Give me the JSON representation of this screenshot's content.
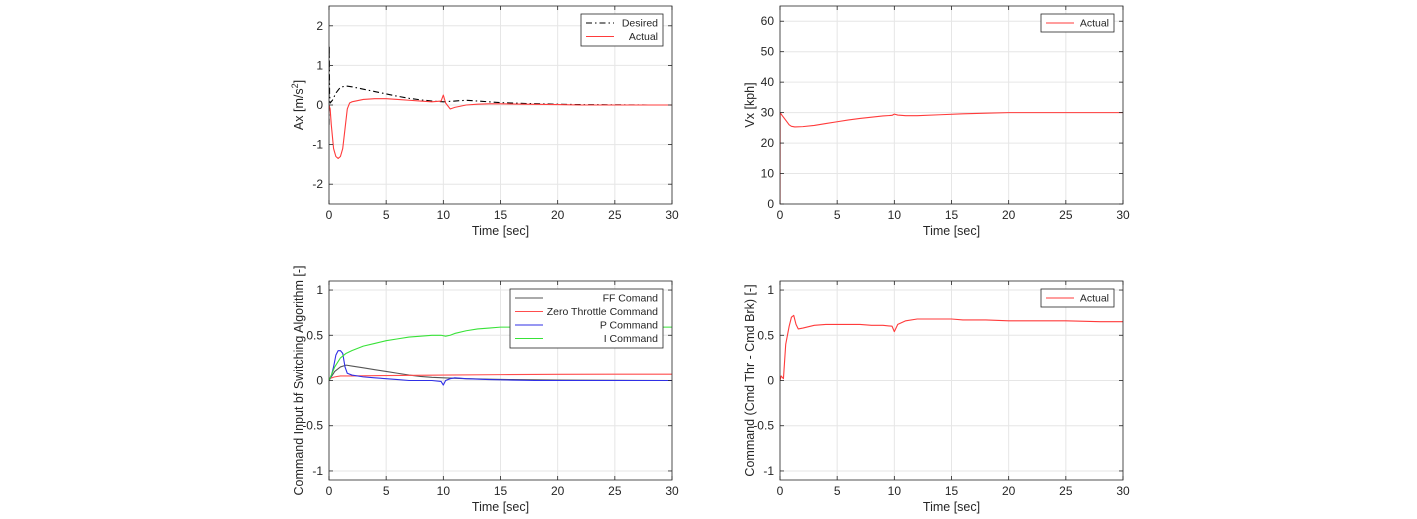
{
  "colors": {
    "desired": "#000000",
    "actual": "#ff3b3b",
    "ff": "#555555",
    "zero": "#ff4d4d",
    "p": "#2f2fe6",
    "i": "#38e238",
    "grid": "#e6e6e6",
    "axis": "#262626"
  },
  "chart_data": [
    {
      "type": "line",
      "xlabel": "Time [sec]",
      "ylabel_main": "Ax [m/s",
      "ylabel_sup": "2",
      "ylabel_end": "]",
      "xlim": [
        0,
        30
      ],
      "ylim": [
        -2.5,
        2.5
      ],
      "xticks": [
        0,
        5,
        10,
        15,
        20,
        25,
        30
      ],
      "yticks": [
        -2,
        -1,
        0,
        1,
        2
      ],
      "grid": true,
      "legend": "top-right",
      "series": [
        {
          "name": "Desired",
          "style": "dashdot",
          "color_key": "desired",
          "x": [
            0,
            0.02,
            0.05,
            0.1,
            0.3,
            0.6,
            1.0,
            1.5,
            2.0,
            3.0,
            4.0,
            5.0,
            6.0,
            7.0,
            8.0,
            9.0,
            10.0,
            11.0,
            12.0,
            13.0,
            14.0,
            15.0,
            17.0,
            20.0,
            22.0,
            25.0,
            28.0,
            30.0
          ],
          "y": [
            -0.5,
            1.5,
            0.3,
            0.05,
            0.12,
            0.3,
            0.45,
            0.48,
            0.46,
            0.4,
            0.34,
            0.28,
            0.22,
            0.17,
            0.13,
            0.1,
            0.08,
            0.1,
            0.12,
            0.1,
            0.08,
            0.06,
            0.04,
            0.02,
            0.01,
            0.005,
            0.0,
            0.0
          ]
        },
        {
          "name": "Actual",
          "style": "solid",
          "color_key": "actual",
          "x": [
            0,
            0.1,
            0.2,
            0.4,
            0.6,
            0.8,
            1.0,
            1.2,
            1.4,
            1.6,
            1.8,
            2.0,
            3.0,
            4.0,
            5.0,
            6.0,
            7.0,
            8.0,
            9.0,
            9.8,
            10.0,
            10.2,
            10.6,
            11.0,
            12.0,
            13.0,
            14.0,
            15.0,
            17.0,
            20.0,
            22.0,
            25.0,
            30.0
          ],
          "y": [
            0.0,
            -0.1,
            -0.5,
            -1.1,
            -1.3,
            -1.35,
            -1.3,
            -1.1,
            -0.6,
            -0.1,
            0.05,
            0.08,
            0.14,
            0.16,
            0.16,
            0.14,
            0.12,
            0.1,
            0.08,
            0.1,
            0.25,
            0.05,
            -0.1,
            -0.06,
            0.0,
            0.02,
            0.03,
            0.03,
            0.02,
            0.01,
            0.0,
            0.0,
            0.0
          ]
        }
      ]
    },
    {
      "type": "line",
      "xlabel": "Time [sec]",
      "ylabel_main": "Vx [kph]",
      "ylabel_sup": "",
      "ylabel_end": "",
      "xlim": [
        0,
        30
      ],
      "ylim": [
        0,
        65
      ],
      "xticks": [
        0,
        5,
        10,
        15,
        20,
        25,
        30
      ],
      "yticks": [
        0,
        10,
        20,
        30,
        40,
        50,
        60
      ],
      "grid": true,
      "legend": "top-right",
      "series": [
        {
          "name": "Actual",
          "style": "solid",
          "color_key": "actual",
          "x": [
            0,
            0.01,
            0.05,
            0.2,
            0.5,
            0.8,
            1.0,
            1.3,
            2.0,
            3.0,
            4.0,
            5.0,
            6.0,
            7.0,
            8.0,
            9.0,
            9.8,
            10.0,
            10.3,
            11.0,
            12.0,
            14.0,
            16.0,
            18.0,
            20.0,
            22.0,
            25.0,
            28.0,
            30.0
          ],
          "y": [
            0,
            30.0,
            29.8,
            29.0,
            27.5,
            26.0,
            25.5,
            25.3,
            25.4,
            25.8,
            26.4,
            27.0,
            27.6,
            28.1,
            28.5,
            28.9,
            29.1,
            29.5,
            29.2,
            29.0,
            29.0,
            29.3,
            29.6,
            29.8,
            30.0,
            30.0,
            30.0,
            30.0,
            30.0
          ]
        }
      ]
    },
    {
      "type": "line",
      "xlabel": "Time [sec]",
      "ylabel_main": "Command Input bf Switching Algorithm [-]",
      "ylabel_sup": "",
      "ylabel_end": "",
      "xlim": [
        0,
        30
      ],
      "ylim": [
        -1.1,
        1.1
      ],
      "xticks": [
        0,
        5,
        10,
        15,
        20,
        25,
        30
      ],
      "yticks": [
        -1,
        -0.5,
        0,
        0.5,
        1
      ],
      "grid": true,
      "legend": "top-right",
      "series": [
        {
          "name": "FF Comand",
          "style": "solid",
          "color_key": "ff",
          "x": [
            0,
            0.5,
            1.0,
            1.5,
            2.0,
            3.0,
            4.0,
            5.0,
            6.0,
            7.0,
            8.0,
            9.0,
            10.0,
            12.0,
            14.0,
            16.0,
            18.0,
            20.0,
            22.0,
            25.0,
            30.0
          ],
          "y": [
            0.0,
            0.1,
            0.15,
            0.17,
            0.16,
            0.14,
            0.12,
            0.1,
            0.08,
            0.06,
            0.045,
            0.035,
            0.03,
            0.02,
            0.015,
            0.01,
            0.008,
            0.005,
            0.003,
            0.002,
            0.0
          ]
        },
        {
          "name": "Zero Throttle Command",
          "style": "solid",
          "color_key": "zero",
          "x": [
            0,
            0.5,
            1.0,
            2.0,
            5.0,
            10.0,
            15.0,
            20.0,
            25.0,
            30.0
          ],
          "y": [
            0.02,
            0.04,
            0.05,
            0.05,
            0.055,
            0.06,
            0.065,
            0.068,
            0.07,
            0.07
          ]
        },
        {
          "name": "P Command",
          "style": "solid",
          "color_key": "p",
          "x": [
            0,
            0.2,
            0.4,
            0.6,
            0.8,
            1.0,
            1.2,
            1.4,
            1.6,
            2.0,
            3.0,
            4.0,
            5.0,
            6.0,
            7.0,
            8.0,
            9.0,
            9.8,
            10.0,
            10.2,
            10.6,
            11.0,
            12.0,
            14.0,
            16.0,
            18.0,
            20.0,
            25.0,
            30.0
          ],
          "y": [
            0.0,
            0.05,
            0.15,
            0.28,
            0.33,
            0.33,
            0.3,
            0.15,
            0.08,
            0.06,
            0.04,
            0.03,
            0.02,
            0.01,
            0.0,
            0.0,
            0.0,
            -0.01,
            -0.05,
            0.0,
            0.02,
            0.03,
            0.02,
            0.01,
            0.005,
            0.0,
            0.0,
            0.0,
            0.0
          ]
        },
        {
          "name": "I Command",
          "style": "solid",
          "color_key": "i",
          "x": [
            0,
            0.5,
            1.0,
            1.5,
            2.0,
            3.0,
            4.0,
            5.0,
            6.0,
            7.0,
            8.0,
            9.0,
            9.8,
            10.2,
            10.6,
            11.0,
            12.0,
            13.0,
            14.0,
            15.0,
            16.0,
            18.0,
            20.0,
            22.0,
            25.0,
            28.0,
            30.0
          ],
          "y": [
            0.0,
            0.15,
            0.25,
            0.3,
            0.33,
            0.38,
            0.41,
            0.44,
            0.46,
            0.48,
            0.49,
            0.5,
            0.5,
            0.49,
            0.5,
            0.52,
            0.55,
            0.57,
            0.58,
            0.59,
            0.59,
            0.59,
            0.59,
            0.59,
            0.59,
            0.59,
            0.59
          ]
        }
      ]
    },
    {
      "type": "line",
      "xlabel": "Time [sec]",
      "ylabel_main": "Command (Cmd Thr - Cmd Brk) [-]",
      "ylabel_sup": "",
      "ylabel_end": "",
      "xlim": [
        0,
        30
      ],
      "ylim": [
        -1.1,
        1.1
      ],
      "xticks": [
        0,
        5,
        10,
        15,
        20,
        25,
        30
      ],
      "yticks": [
        -1,
        -0.5,
        0,
        0.5,
        1
      ],
      "grid": true,
      "legend": "top-right",
      "series": [
        {
          "name": "Actual",
          "style": "solid",
          "color_key": "actual",
          "x": [
            0,
            0.1,
            0.3,
            0.5,
            0.8,
            1.0,
            1.2,
            1.4,
            1.6,
            2.0,
            3.0,
            4.0,
            5.0,
            6.0,
            7.0,
            8.0,
            9.0,
            9.8,
            10.0,
            10.3,
            11.0,
            12.0,
            13.0,
            14.0,
            15.0,
            16.0,
            18.0,
            20.0,
            22.0,
            25.0,
            28.0,
            30.0
          ],
          "y": [
            0.0,
            0.05,
            0.02,
            0.4,
            0.6,
            0.7,
            0.72,
            0.62,
            0.57,
            0.58,
            0.61,
            0.62,
            0.62,
            0.62,
            0.62,
            0.61,
            0.61,
            0.6,
            0.54,
            0.62,
            0.66,
            0.68,
            0.68,
            0.68,
            0.68,
            0.67,
            0.67,
            0.66,
            0.66,
            0.66,
            0.65,
            0.65
          ]
        }
      ]
    }
  ]
}
